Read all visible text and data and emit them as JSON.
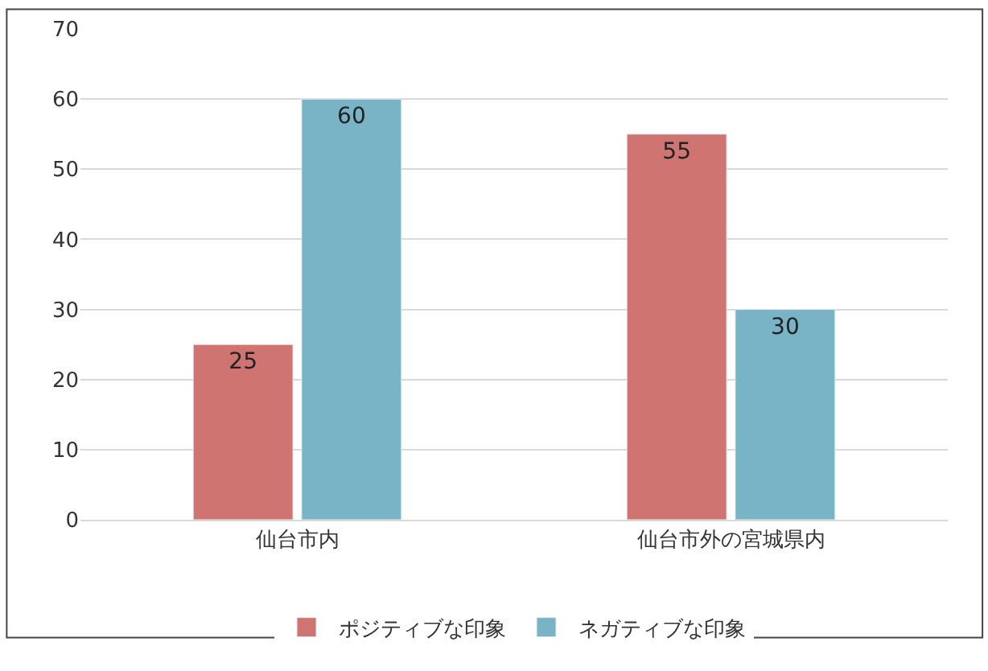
{
  "chart_data": {
    "type": "bar",
    "categories": [
      "仙台市内",
      "仙台市外の宮城県内"
    ],
    "series": [
      {
        "name": "ポジティブな印象",
        "color": "#cf7470",
        "values": [
          25,
          55
        ]
      },
      {
        "name": "ネガティブな印象",
        "color": "#79b4c6",
        "values": [
          60,
          30
        ]
      }
    ],
    "ylim": [
      0,
      70
    ],
    "yticks": [
      0,
      10,
      20,
      30,
      40,
      50,
      60,
      70
    ],
    "grid": "y",
    "legend": "bottom",
    "data_labels": true
  }
}
